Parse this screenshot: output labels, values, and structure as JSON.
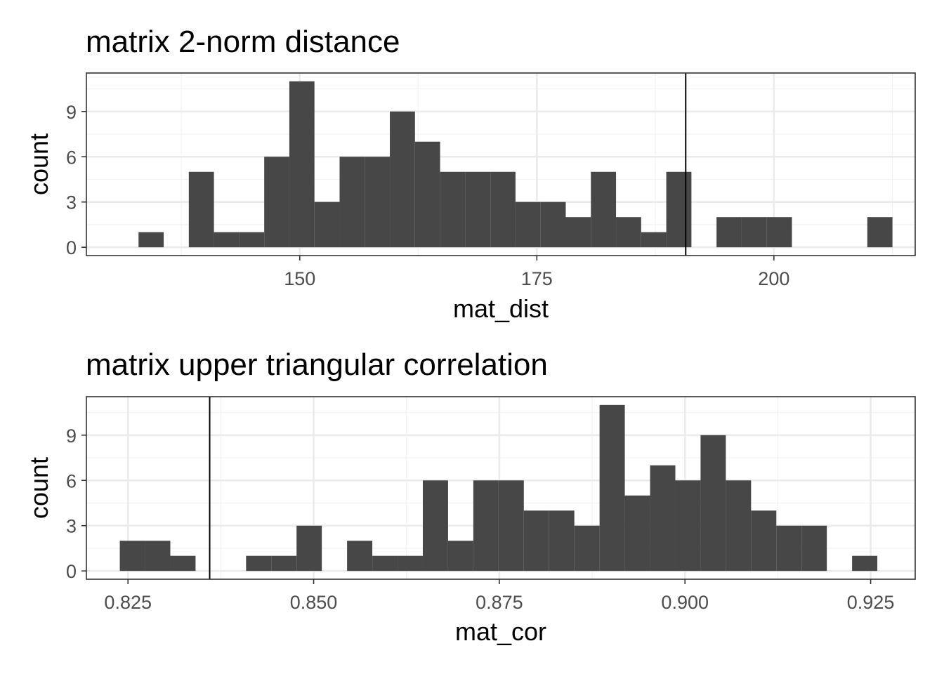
{
  "colors": {
    "bar": "#474747",
    "panel_border": "#333333",
    "grid_major": "#ebebeb",
    "grid_minor": "#f3f3f3",
    "vline": "#000000",
    "tick_text": "#4d4d4d"
  },
  "chart_data": [
    {
      "type": "bar",
      "title": "matrix 2-norm distance",
      "xlabel": "mat_dist",
      "ylabel": "count",
      "xlim": [
        127.5,
        214.9
      ],
      "ylim": [
        -0.55,
        11.55
      ],
      "xticks": [
        150,
        175,
        200
      ],
      "xtick_labels": [
        "150",
        "175",
        "200"
      ],
      "yticks": [
        0,
        3,
        6,
        9
      ],
      "ytick_labels": [
        "0",
        "3",
        "6",
        "9"
      ],
      "grid": true,
      "bin_start": 133.0,
      "bin_width": 2.65,
      "counts": [
        1,
        0,
        5,
        1,
        1,
        6,
        11,
        3,
        6,
        6,
        9,
        7,
        5,
        5,
        5,
        3,
        3,
        2,
        5,
        2,
        1,
        5,
        0,
        2,
        2,
        2,
        0,
        0,
        0,
        2
      ],
      "reference_line": 190.7
    },
    {
      "type": "bar",
      "title": "matrix upper triangular correlation",
      "xlabel": "mat_cor",
      "ylabel": "count",
      "xlim": [
        0.8194,
        0.931
      ],
      "ylim": [
        -0.55,
        11.55
      ],
      "xticks": [
        0.825,
        0.85,
        0.875,
        0.9,
        0.925
      ],
      "xtick_labels": [
        "0.825",
        "0.850",
        "0.875",
        "0.900",
        "0.925"
      ],
      "yticks": [
        0,
        3,
        6,
        9
      ],
      "ytick_labels": [
        "0",
        "3",
        "6",
        "9"
      ],
      "grid": true,
      "bin_start": 0.8239,
      "bin_width": 0.0034,
      "counts": [
        2,
        2,
        1,
        0,
        0,
        1,
        1,
        3,
        0,
        2,
        1,
        1,
        6,
        2,
        6,
        6,
        4,
        4,
        3,
        11,
        5,
        7,
        6,
        9,
        6,
        4,
        3,
        3,
        0,
        1
      ],
      "reference_line": 0.836
    }
  ]
}
